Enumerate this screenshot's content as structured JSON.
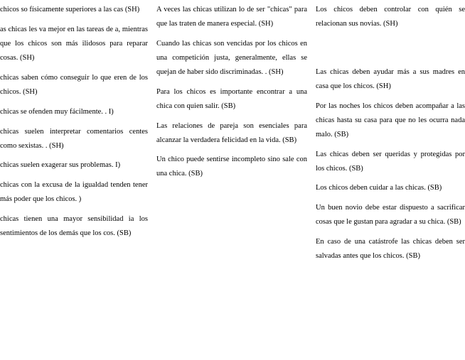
{
  "columns": {
    "col1": [
      "chicos so físicamente superiores a las cas (SH)",
      "as chicas les va mejor en las tareas de a, mientras que los chicos son más ilidosos para reparar cosas. (SH)",
      "chicas saben cómo conseguir lo que eren de los chicos. (SH)",
      "chicas se ofenden muy fácilmente. . I)",
      "chicas suelen interpretar comentarios centes como sexistas. . (SH)",
      "chicas suelen exagerar sus problemas. I)",
      "chicas con la excusa de la igualdad tenden tener más poder que los chicos. )",
      "chicas tienen una mayor sensibilidad ia los sentimientos de los demás que los cos. (SB)"
    ],
    "col2": [
      "A veces las chicas utilizan lo de ser \"chicas\" para que las traten de manera especial. (SH)",
      "Cuando las chicas son vencidas por los chicos en una competición justa, generalmente, ellas se quejan de haber sido discriminadas. . (SH)",
      "Para los chicos es importante encontrar a una chica con quien salir. (SB)",
      "Las relaciones de pareja son esenciales para alcanzar la verdadera felicidad en la vida. (SB)",
      "Un chico puede sentirse incompleto sino sale con una chica. (SB)"
    ],
    "col3": [
      "Los chicos deben controlar con quién se relacionan sus novias. (SH)",
      "Las chicas deben ayudar más a sus madres en casa que los chicos. (SH)",
      "Por las noches los chicos deben acompañar a las chicas hasta su casa para que no les ocurra nada malo. (SB)",
      "Las chicas deben ser queridas y protegidas por los chicos. (SB)",
      "Los chicos deben cuidar a las chicas. (SB)",
      "Un buen novio debe estar dispuesto a sacrificar cosas que le gustan para agradar a su chica. (SB)",
      "En caso de una catástrofe las chicas deben ser salvadas antes que los chicos. (SB)"
    ]
  },
  "style": {
    "font_family": "Times New Roman",
    "font_size_pt": 10.5,
    "line_height": 1.9,
    "text_color": "#000000",
    "background_color": "#ffffff",
    "text_align": "justify"
  }
}
